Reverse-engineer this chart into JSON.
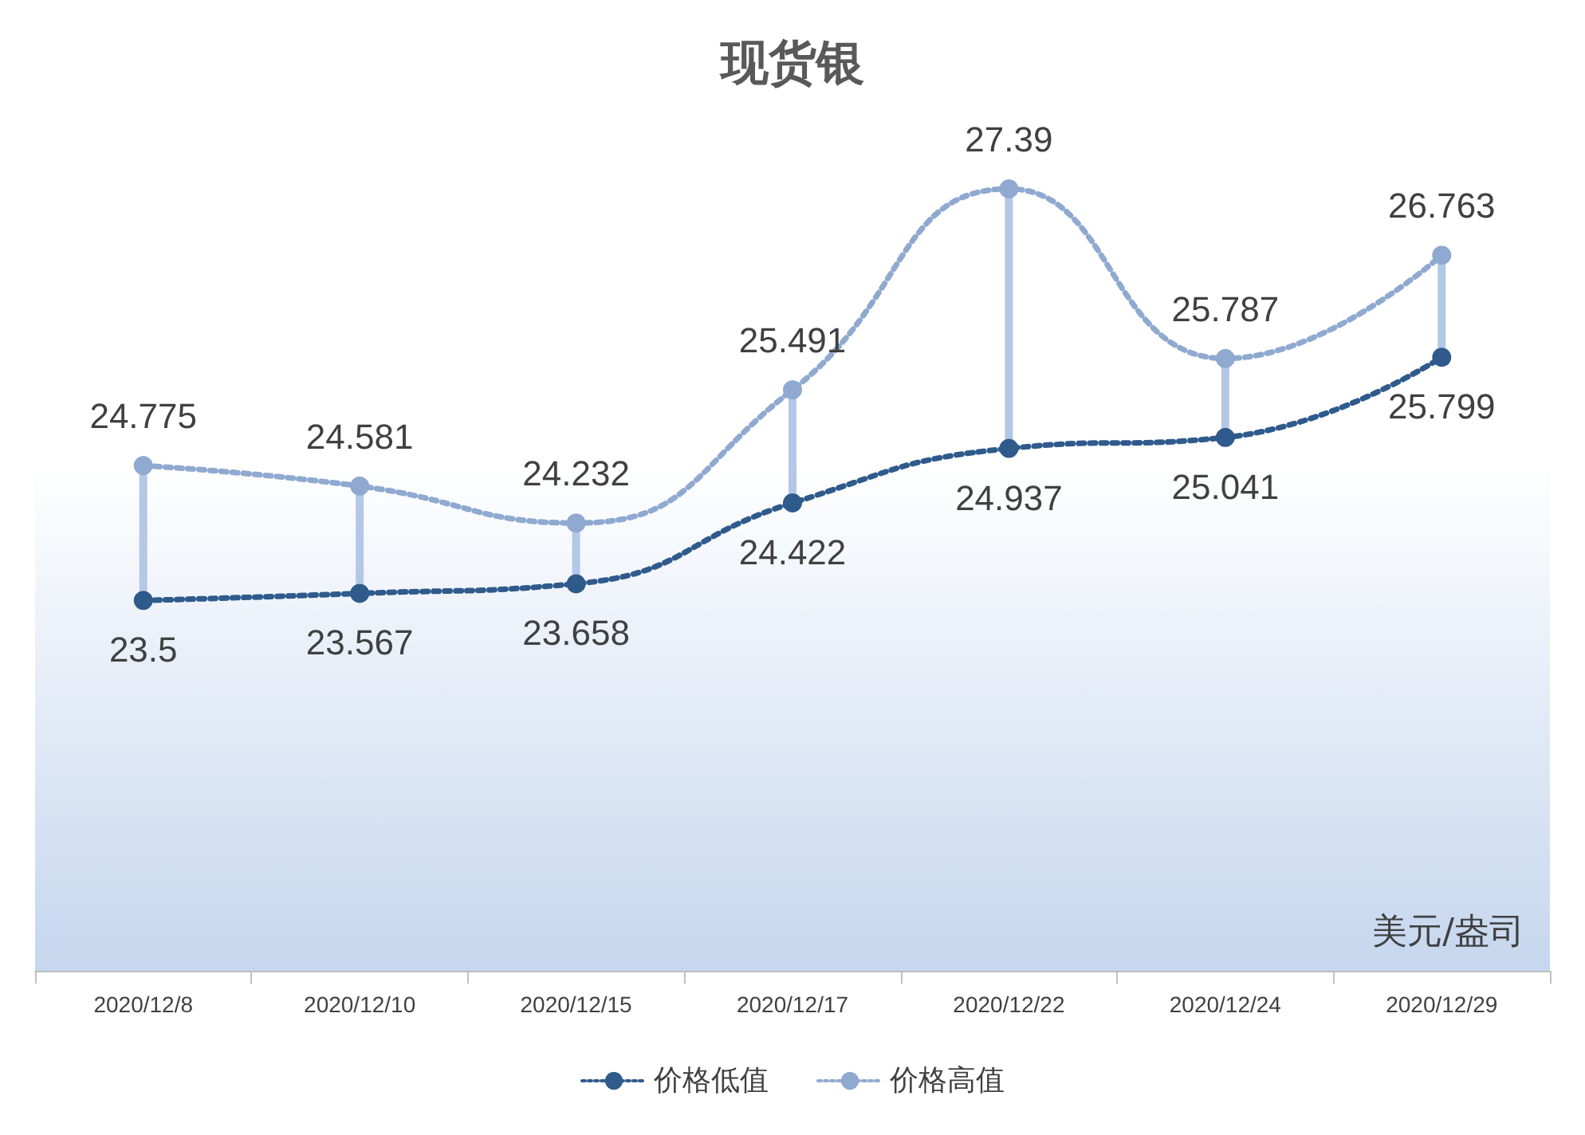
{
  "chart_data": {
    "type": "line",
    "title": "现货银",
    "annotations": [
      "美元/盎司"
    ],
    "categories": [
      "2020/12/8",
      "2020/12/10",
      "2020/12/15",
      "2020/12/17",
      "2020/12/22",
      "2020/12/24",
      "2020/12/29"
    ],
    "series": [
      {
        "name": "价格低值",
        "color": "#2f5a8c",
        "values": [
          23.5,
          23.567,
          23.658,
          24.422,
          24.937,
          25.041,
          25.799
        ]
      },
      {
        "name": "价格高值",
        "color": "#8fa9d0",
        "values": [
          24.775,
          24.581,
          24.232,
          25.491,
          27.39,
          25.787,
          26.763
        ]
      }
    ],
    "ylim": [
      20,
      28
    ],
    "tick_labels": "x",
    "data_labels": true,
    "grid": false,
    "legend": "bottom",
    "marker": "circle",
    "line_style": "dotted"
  }
}
